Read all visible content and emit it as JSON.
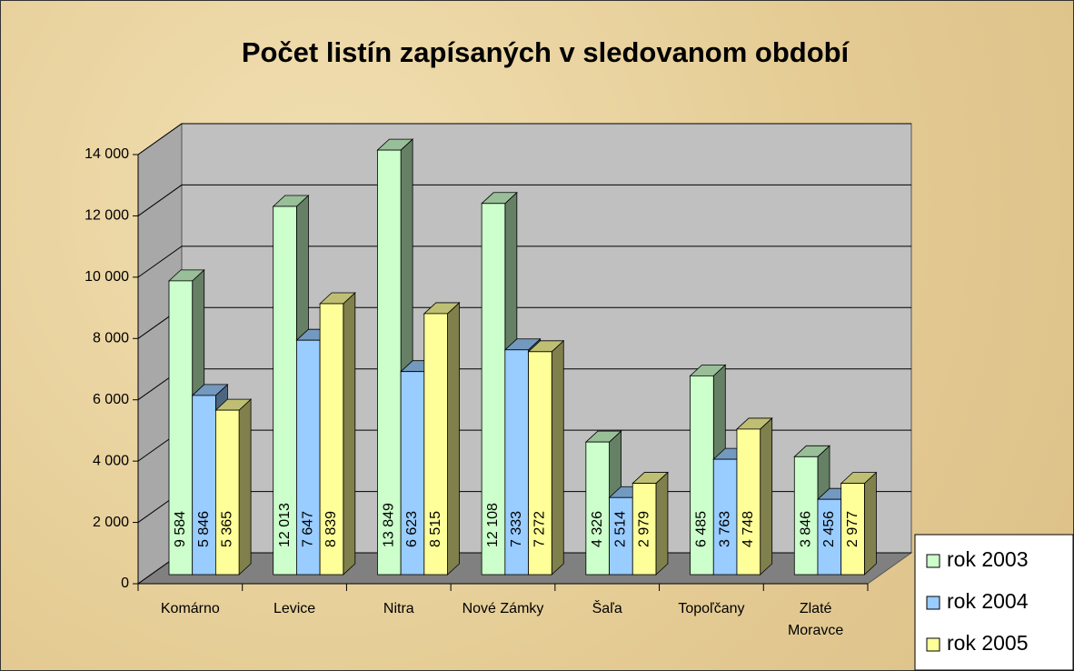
{
  "chart_data": {
    "type": "bar3d",
    "title": "Počet listín zapísaných v sledovanom období",
    "categories": [
      "Komárno",
      "Levice",
      "Nitra",
      "Nové Zámky",
      "Šaľa",
      "Topoľčany",
      "Zlaté Moravce"
    ],
    "series": [
      {
        "name": "rok 2003",
        "color": "#ccffcc",
        "values": [
          9584,
          12013,
          13849,
          12108,
          4326,
          6485,
          3846
        ],
        "value_labels": [
          "9 584",
          "12 013",
          "13 849",
          "12 108",
          "4 326",
          "6 485",
          "3 846"
        ]
      },
      {
        "name": "rok 2004",
        "color": "#99ccff",
        "values": [
          5846,
          7647,
          6623,
          7333,
          2514,
          3763,
          2456
        ],
        "value_labels": [
          "5 846",
          "7 647",
          "6 623",
          "7 333",
          "2 514",
          "3 763",
          "2 456"
        ]
      },
      {
        "name": "rok 2005",
        "color": "#ffff99",
        "values": [
          5365,
          8839,
          8515,
          7272,
          2979,
          4748,
          2977
        ],
        "value_labels": [
          "5 365",
          "8 839",
          "8 515",
          "7 272",
          "2 979",
          "4 748",
          "2 977"
        ]
      }
    ],
    "ylim": [
      0,
      14000
    ],
    "yticks": [
      0,
      {
        "value": 2000,
        "label": "2 000"
      },
      {
        "value": 4000,
        "label": "4 000"
      },
      {
        "value": 6000,
        "label": "6 000"
      },
      {
        "value": 8000,
        "label": "8 000"
      },
      {
        "value": 10000,
        "label": "10 000"
      },
      {
        "value": 12000,
        "label": "12 000"
      },
      {
        "value": 14000,
        "label": "14 000"
      }
    ],
    "grid": true,
    "legend": "bottom-right"
  }
}
